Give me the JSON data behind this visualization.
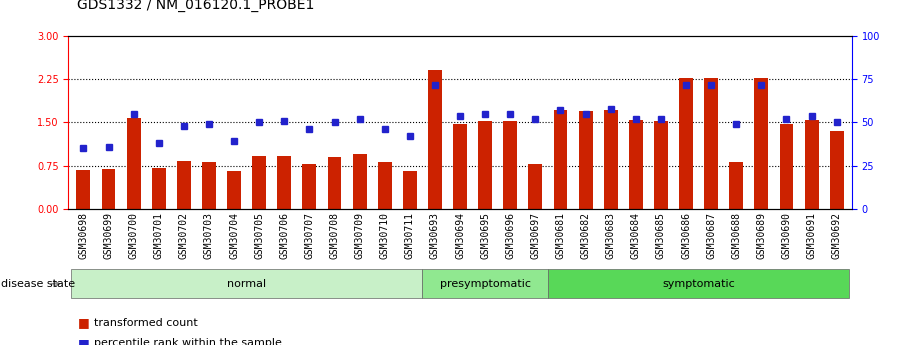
{
  "title": "GDS1332 / NM_016120.1_PROBE1",
  "samples": [
    "GSM30698",
    "GSM30699",
    "GSM30700",
    "GSM30701",
    "GSM30702",
    "GSM30703",
    "GSM30704",
    "GSM30705",
    "GSM30706",
    "GSM30707",
    "GSM30708",
    "GSM30709",
    "GSM30710",
    "GSM30711",
    "GSM30693",
    "GSM30694",
    "GSM30695",
    "GSM30696",
    "GSM30697",
    "GSM30681",
    "GSM30682",
    "GSM30683",
    "GSM30684",
    "GSM30685",
    "GSM30686",
    "GSM30687",
    "GSM30688",
    "GSM30689",
    "GSM30690",
    "GSM30691",
    "GSM30692"
  ],
  "red_bars": [
    0.68,
    0.69,
    1.57,
    0.7,
    0.83,
    0.81,
    0.66,
    0.92,
    0.92,
    0.77,
    0.9,
    0.95,
    0.81,
    0.66,
    2.42,
    1.47,
    1.52,
    1.52,
    0.77,
    1.72,
    1.7,
    1.72,
    1.55,
    1.53,
    2.28,
    2.28,
    0.82,
    2.28,
    1.47,
    1.55,
    1.35
  ],
  "blue_squares": [
    35,
    36,
    55,
    38,
    48,
    49,
    39,
    50,
    51,
    46,
    50,
    52,
    46,
    42,
    72,
    54,
    55,
    55,
    52,
    57,
    55,
    58,
    52,
    52,
    72,
    72,
    49,
    72,
    52,
    54,
    50
  ],
  "groups": [
    {
      "label": "normal",
      "start": 0,
      "end": 13,
      "color": "#c8f0c8"
    },
    {
      "label": "presymptomatic",
      "start": 14,
      "end": 18,
      "color": "#90e890"
    },
    {
      "label": "symptomatic",
      "start": 19,
      "end": 30,
      "color": "#58d858"
    }
  ],
  "ylim_left": [
    0,
    3.0
  ],
  "ylim_right": [
    0,
    100
  ],
  "yticks_left": [
    0,
    0.75,
    1.5,
    2.25,
    3.0
  ],
  "yticks_right": [
    0,
    25,
    50,
    75,
    100
  ],
  "bar_color": "#cc2200",
  "square_color": "#2222cc",
  "title_fontsize": 10,
  "tick_label_fontsize": 7,
  "legend_fontsize": 8,
  "group_label_fontsize": 8,
  "disease_state_fontsize": 8,
  "xtick_bg": "#d8d8d8"
}
